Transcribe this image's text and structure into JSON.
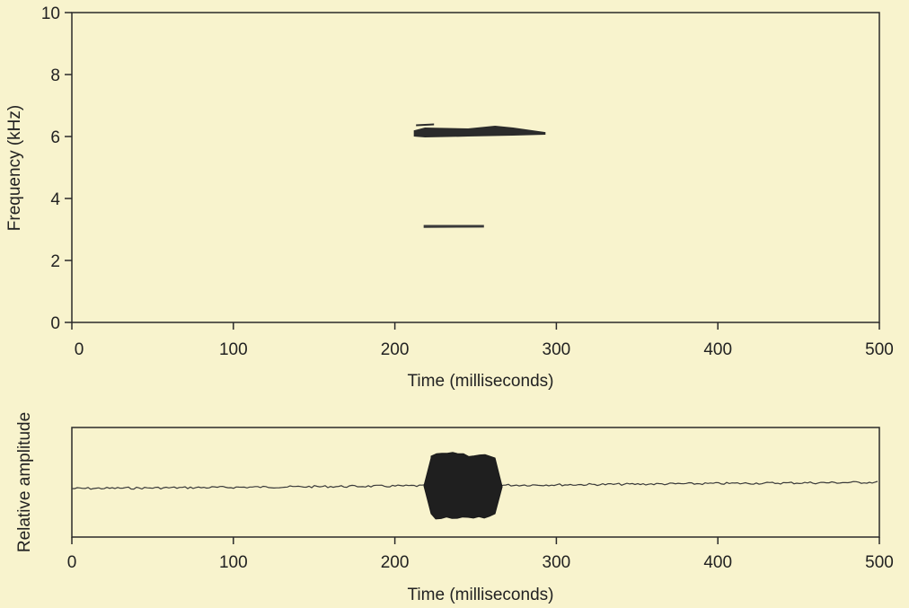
{
  "colors": {
    "background": "#f8f3cd",
    "ink": "#2a2a2a"
  },
  "chart_data": [
    {
      "type": "spectrogram",
      "xlabel": "Time (milliseconds)",
      "ylabel": "Frequency (kHz)",
      "xlim": [
        0,
        500
      ],
      "ylim": [
        0,
        10
      ],
      "xticks": [
        "0",
        "100",
        "200",
        "300",
        "400",
        "500"
      ],
      "yticks": [
        "0",
        "2",
        "4",
        "6",
        "8",
        "10"
      ],
      "grid": false,
      "traces": [
        {
          "t_start": 212,
          "t_end": 293,
          "freq_khz": 6.1
        },
        {
          "t_start": 218,
          "t_end": 255,
          "freq_khz": 3.1
        }
      ]
    },
    {
      "type": "line",
      "xlabel": "Time (milliseconds)",
      "ylabel": "Relative amplitude",
      "xlim": [
        0,
        500
      ],
      "xticks": [
        "0",
        "100",
        "200",
        "300",
        "400",
        "500"
      ],
      "grid": false,
      "burst": {
        "t_start": 218,
        "t_end": 262
      }
    }
  ]
}
